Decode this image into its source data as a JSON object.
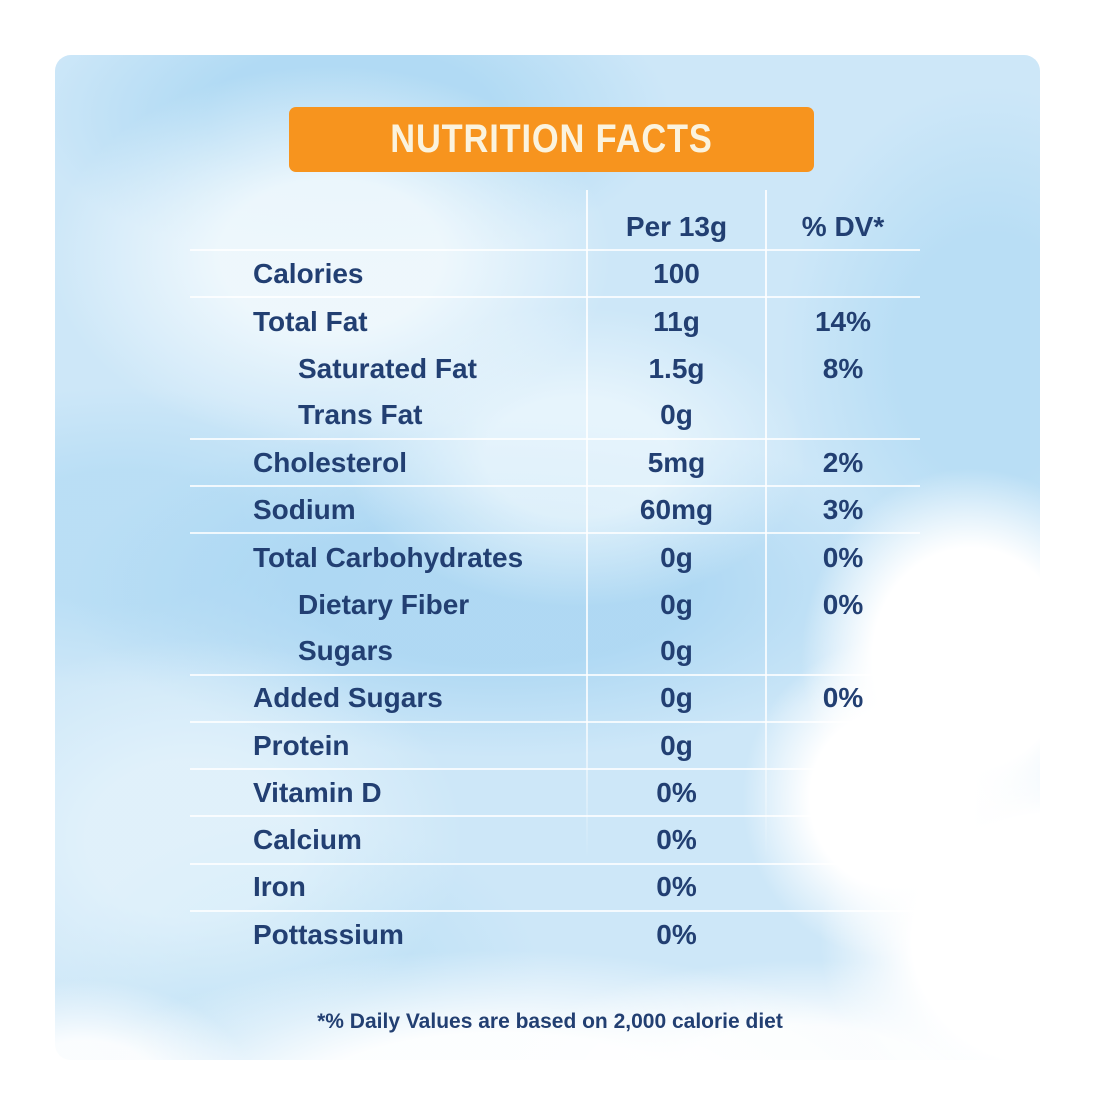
{
  "banner": {
    "title": "NUTRITION FACTS"
  },
  "table": {
    "amount_header": "Per 13g",
    "dv_header": "% DV*",
    "rows": [
      {
        "label": "Calories",
        "amount": "100",
        "dv": "",
        "indent": false,
        "divider": true
      },
      {
        "label": "Total Fat",
        "amount": "11g",
        "dv": "14%",
        "indent": false,
        "divider": false
      },
      {
        "label": "Saturated Fat",
        "amount": "1.5g",
        "dv": "8%",
        "indent": true,
        "divider": false
      },
      {
        "label": "Trans Fat",
        "amount": "0g",
        "dv": "",
        "indent": true,
        "divider": true
      },
      {
        "label": "Cholesterol",
        "amount": "5mg",
        "dv": "2%",
        "indent": false,
        "divider": true
      },
      {
        "label": "Sodium",
        "amount": "60mg",
        "dv": "3%",
        "indent": false,
        "divider": true
      },
      {
        "label": "Total Carbohydrates",
        "amount": "0g",
        "dv": "0%",
        "indent": false,
        "divider": false
      },
      {
        "label": "Dietary Fiber",
        "amount": "0g",
        "dv": "0%",
        "indent": true,
        "divider": false
      },
      {
        "label": "Sugars",
        "amount": "0g",
        "dv": "",
        "indent": true,
        "divider": true
      },
      {
        "label": "Added Sugars",
        "amount": "0g",
        "dv": "0%",
        "indent": false,
        "divider": true
      },
      {
        "label": "Protein",
        "amount": "0g",
        "dv": "",
        "indent": false,
        "divider": true
      },
      {
        "label": "Vitamin D",
        "amount": "0%",
        "dv": "",
        "indent": false,
        "divider": true
      },
      {
        "label": "Calcium",
        "amount": "0%",
        "dv": "",
        "indent": false,
        "divider": true
      },
      {
        "label": "Iron",
        "amount": "0%",
        "dv": "",
        "indent": false,
        "divider": true
      },
      {
        "label": "Pottassium",
        "amount": "0%",
        "dv": "",
        "indent": false,
        "divider": false
      }
    ]
  },
  "footnote": "*% Daily Values are based on 2,000 calorie diet",
  "colors": {
    "banner_bg": "#F7941E",
    "banner_text": "#FBF3DE",
    "text": "#223F72",
    "wash_blue": "#CDE7F8",
    "divider": "#FFFFFF"
  }
}
